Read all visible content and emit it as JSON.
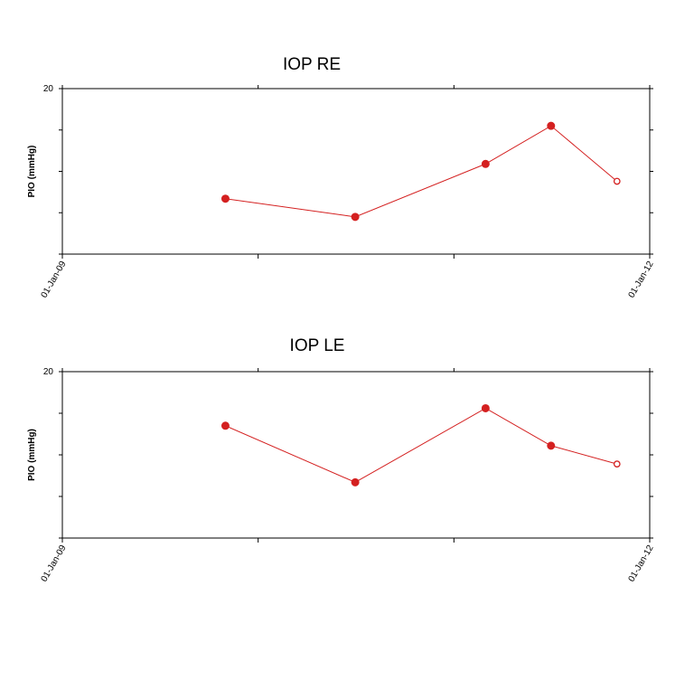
{
  "colors": {
    "series": "#d42020",
    "axis": "#000000",
    "background": "#ffffff"
  },
  "chart_data": [
    {
      "type": "line",
      "title": "IOP RE",
      "xlabel": "",
      "ylabel": "PIO (mmHg)",
      "ylim": [
        0,
        20
      ],
      "y_tick_labels": [
        "20"
      ],
      "x_tick_labels": [
        "01-Jan-09",
        "01-Jan-12"
      ],
      "xlim": [
        "2009-01-01",
        "2012-01-01"
      ],
      "grid": false,
      "series": [
        {
          "x": [
            "2009-11-01",
            "2010-07-01",
            "2011-03-01",
            "2011-07-01",
            "2011-11-01"
          ],
          "values": [
            6.7,
            4.5,
            10.9,
            15.5,
            8.8
          ],
          "marker_filled": [
            true,
            true,
            true,
            true,
            false
          ]
        }
      ]
    },
    {
      "type": "line",
      "title": "IOP LE",
      "xlabel": "",
      "ylabel": "PIO (mmHg)",
      "ylim": [
        0,
        20
      ],
      "y_tick_labels": [
        "20"
      ],
      "x_tick_labels": [
        "01-Jan-09",
        "01-Jan-12"
      ],
      "xlim": [
        "2009-01-01",
        "2012-01-01"
      ],
      "grid": false,
      "series": [
        {
          "x": [
            "2009-11-01",
            "2010-07-01",
            "2011-03-01",
            "2011-07-01",
            "2011-11-01"
          ],
          "values": [
            13.5,
            6.7,
            15.6,
            11.1,
            8.9
          ],
          "marker_filled": [
            true,
            true,
            true,
            true,
            false
          ]
        }
      ]
    }
  ]
}
